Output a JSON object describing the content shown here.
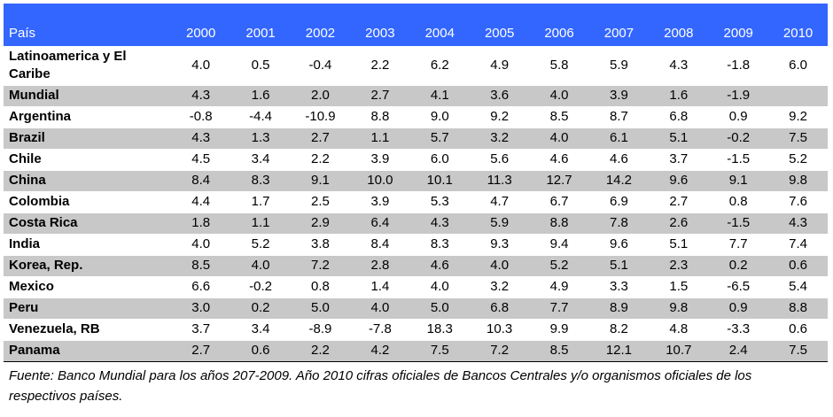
{
  "table": {
    "header_label": "País",
    "years": [
      "2000",
      "2001",
      "2002",
      "2003",
      "2004",
      "2005",
      "2006",
      "2007",
      "2008",
      "2009",
      "2010"
    ],
    "rows": [
      {
        "name": "Latinoamerica y El Caribe",
        "values": [
          "4.0",
          "0.5",
          "-0.4",
          "2.2",
          "6.2",
          "4.9",
          "5.8",
          "5.9",
          "4.3",
          "-1.8",
          "6.0"
        ]
      },
      {
        "name": "Mundial",
        "values": [
          "4.3",
          "1.6",
          "2.0",
          "2.7",
          "4.1",
          "3.6",
          "4.0",
          "3.9",
          "1.6",
          "-1.9",
          ""
        ]
      },
      {
        "name": "Argentina",
        "values": [
          "-0.8",
          "-4.4",
          "-10.9",
          "8.8",
          "9.0",
          "9.2",
          "8.5",
          "8.7",
          "6.8",
          "0.9",
          "9.2"
        ]
      },
      {
        "name": "Brazil",
        "values": [
          "4.3",
          "1.3",
          "2.7",
          "1.1",
          "5.7",
          "3.2",
          "4.0",
          "6.1",
          "5.1",
          "-0.2",
          "7.5"
        ]
      },
      {
        "name": "Chile",
        "values": [
          "4.5",
          "3.4",
          "2.2",
          "3.9",
          "6.0",
          "5.6",
          "4.6",
          "4.6",
          "3.7",
          "-1.5",
          "5.2"
        ]
      },
      {
        "name": "China",
        "values": [
          "8.4",
          "8.3",
          "9.1",
          "10.0",
          "10.1",
          "11.3",
          "12.7",
          "14.2",
          "9.6",
          "9.1",
          "9.8"
        ]
      },
      {
        "name": "Colombia",
        "values": [
          "4.4",
          "1.7",
          "2.5",
          "3.9",
          "5.3",
          "4.7",
          "6.7",
          "6.9",
          "2.7",
          "0.8",
          "7.6"
        ]
      },
      {
        "name": "Costa Rica",
        "values": [
          "1.8",
          "1.1",
          "2.9",
          "6.4",
          "4.3",
          "5.9",
          "8.8",
          "7.8",
          "2.6",
          "-1.5",
          "4.3"
        ]
      },
      {
        "name": "India",
        "values": [
          "4.0",
          "5.2",
          "3.8",
          "8.4",
          "8.3",
          "9.3",
          "9.4",
          "9.6",
          "5.1",
          "7.7",
          "7.4"
        ]
      },
      {
        "name": "Korea, Rep.",
        "values": [
          "8.5",
          "4.0",
          "7.2",
          "2.8",
          "4.6",
          "4.0",
          "5.2",
          "5.1",
          "2.3",
          "0.2",
          "0.6"
        ]
      },
      {
        "name": "Mexico",
        "values": [
          "6.6",
          "-0.2",
          "0.8",
          "1.4",
          "4.0",
          "3.2",
          "4.9",
          "3.3",
          "1.5",
          "-6.5",
          "5.4"
        ]
      },
      {
        "name": "Peru",
        "values": [
          "3.0",
          "0.2",
          "5.0",
          "4.0",
          "5.0",
          "6.8",
          "7.7",
          "8.9",
          "9.8",
          "0.9",
          "8.8"
        ]
      },
      {
        "name": "Venezuela, RB",
        "values": [
          "3.7",
          "3.4",
          "-8.9",
          "-7.8",
          "18.3",
          "10.3",
          "9.9",
          "8.2",
          "4.8",
          "-3.3",
          "0.6"
        ]
      },
      {
        "name": "Panama",
        "values": [
          "2.7",
          "0.6",
          "2.2",
          "4.2",
          "7.5",
          "7.2",
          "8.5",
          "12.1",
          "10.7",
          "2.4",
          "7.5"
        ]
      }
    ]
  },
  "footnote": "Fuente: Banco Mundial para los años 207-2009. Año 2010 cifras oficiales de Bancos Centrales y/o organismos oficiales de los respectivos países.",
  "colors": {
    "header_bg": "#3366ff",
    "shade_bg": "#c8c8c8"
  }
}
